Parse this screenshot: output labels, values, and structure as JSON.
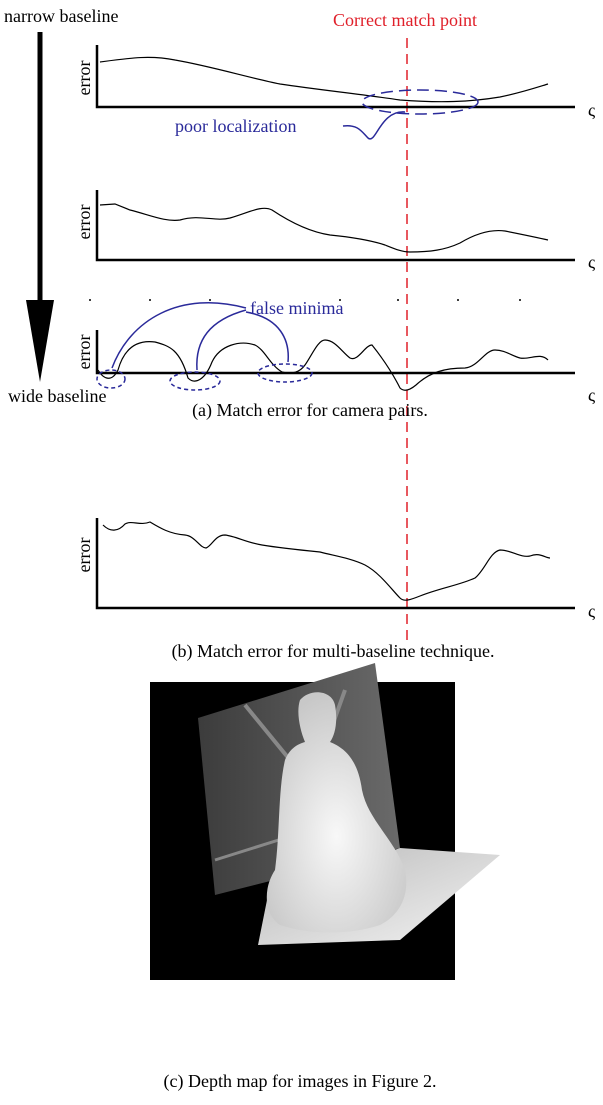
{
  "arrow": {
    "top_label": "narrow baseline",
    "bottom_label": "wide baseline"
  },
  "match_line_label": "Correct match point",
  "plots": [
    {
      "y_label": "error",
      "x_label": "ς",
      "annotation": "poor localization"
    },
    {
      "y_label": "error",
      "x_label": "ς"
    },
    {
      "y_label": "error",
      "x_label": "ς",
      "annotation": "false minima"
    },
    {
      "y_label": "error",
      "x_label": "ς"
    }
  ],
  "captions": [
    "(a) Match error for camera pairs.",
    "(b) Match error for multi-baseline technique.",
    "(c) Depth map for images in Figure 2."
  ]
}
